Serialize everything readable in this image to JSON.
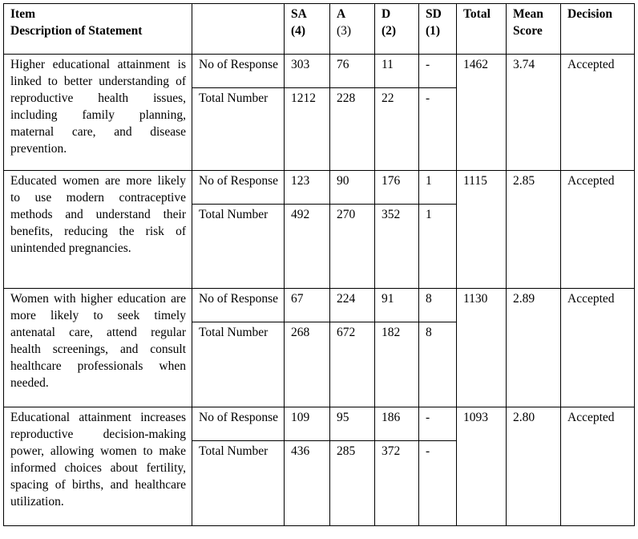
{
  "table": {
    "headers": {
      "item": "Item",
      "description": "Description of Statement",
      "columns": [
        {
          "label": "SA",
          "weight": "(4)"
        },
        {
          "label": "A",
          "weight": "(3)"
        },
        {
          "label": "D",
          "weight": "(2)"
        },
        {
          "label": "SD",
          "weight": "(1)"
        }
      ],
      "total": "Total",
      "mean": "Mean Score",
      "decision": "Decision"
    },
    "rows": [
      {
        "statement": "Higher educational attainment is linked to better understanding of reproductive health issues, including family planning, maternal care, and disease prevention.",
        "response_label": "No of Response",
        "responses": [
          "303",
          "76",
          "11",
          "-"
        ],
        "total_label": "Total Number",
        "totals": [
          "1212",
          "228",
          "22",
          "-"
        ],
        "total": "1462",
        "mean": "3.74",
        "decision": "Accepted"
      },
      {
        "statement": "Educated women are more likely to use modern contraceptive methods and understand their benefits, reducing the risk of unintended pregnancies.",
        "response_label": "No of Response",
        "responses": [
          "123",
          "90",
          "176",
          "1"
        ],
        "total_label": "Total Number",
        "totals": [
          "492",
          "270",
          "352",
          "1"
        ],
        "total": "1115",
        "mean": "2.85",
        "decision": "Accepted"
      },
      {
        "statement": "Women with higher education are more likely to seek timely antenatal care, attend regular health screenings, and consult healthcare professionals when needed.",
        "response_label": "No of Response",
        "responses": [
          "67",
          "224",
          "91",
          "8"
        ],
        "total_label": "Total Number",
        "totals": [
          "268",
          "672",
          "182",
          "8"
        ],
        "total": "1130",
        "mean": "2.89",
        "decision": "Accepted"
      },
      {
        "statement": "Educational attainment increases reproductive decision-making power, allowing women to make informed choices about fertility, spacing of births, and healthcare utilization.",
        "response_label": "No of Response",
        "responses": [
          "109",
          "95",
          "186",
          "-"
        ],
        "total_label": "Total Number",
        "totals": [
          "436",
          "285",
          "372",
          "-"
        ],
        "total": "1093",
        "mean": "2.80",
        "decision": "Accepted"
      }
    ]
  }
}
